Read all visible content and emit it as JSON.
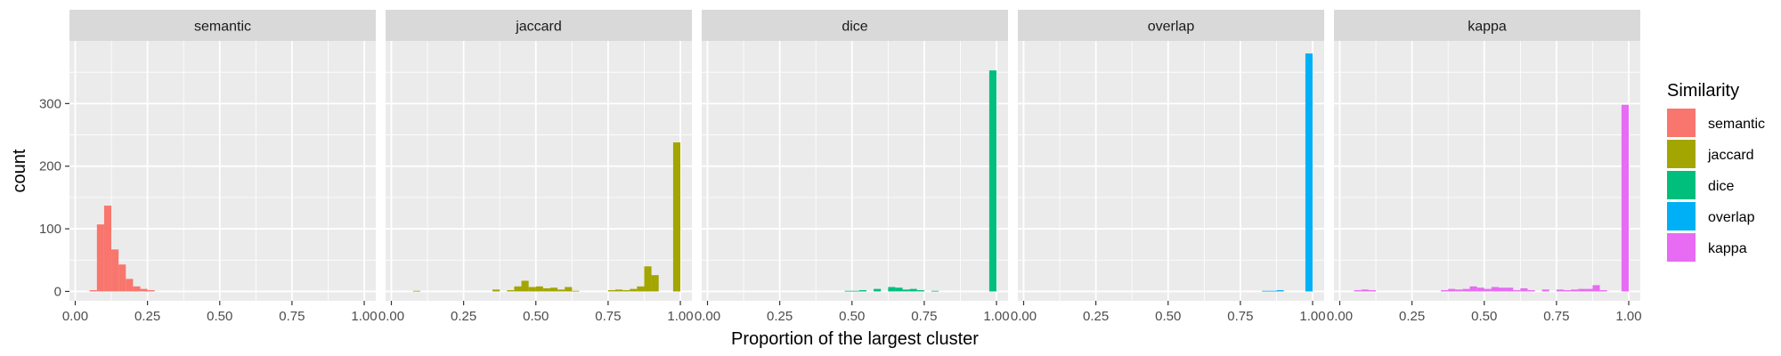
{
  "chart_data": {
    "type": "bar",
    "xlabel": "Proportion of the largest cluster",
    "ylabel": "count",
    "xlim": [
      -0.02,
      1.04
    ],
    "ylim": [
      -15,
      400
    ],
    "x_ticks": [
      0.0,
      0.25,
      0.5,
      0.75,
      1.0
    ],
    "x_tick_labels": [
      "0.00",
      "0.25",
      "0.50",
      "0.75",
      "1.00"
    ],
    "y_ticks": [
      0,
      100,
      200,
      300
    ],
    "y_tick_labels": [
      "0",
      "100",
      "200",
      "300"
    ],
    "grid": true,
    "bin_width": 0.025,
    "legend": {
      "title": "Similarity",
      "placement": "right",
      "entries": [
        {
          "name": "semantic",
          "color": "#F8766D"
        },
        {
          "name": "jaccard",
          "color": "#A3A500"
        },
        {
          "name": "dice",
          "color": "#00BF7D"
        },
        {
          "name": "overlap",
          "color": "#00B0F6"
        },
        {
          "name": "kappa",
          "color": "#E76BF3"
        }
      ]
    },
    "panels": [
      {
        "strip": "semantic",
        "color": "#F8766D",
        "bins": [
          {
            "x": 0.05,
            "count": 2
          },
          {
            "x": 0.075,
            "count": 107
          },
          {
            "x": 0.1,
            "count": 137
          },
          {
            "x": 0.125,
            "count": 67
          },
          {
            "x": 0.15,
            "count": 43
          },
          {
            "x": 0.175,
            "count": 20
          },
          {
            "x": 0.2,
            "count": 8
          },
          {
            "x": 0.225,
            "count": 4
          },
          {
            "x": 0.25,
            "count": 2
          }
        ]
      },
      {
        "strip": "jaccard",
        "color": "#A3A500",
        "bins": [
          {
            "x": 0.075,
            "count": 1
          },
          {
            "x": 0.35,
            "count": 3
          },
          {
            "x": 0.4,
            "count": 2
          },
          {
            "x": 0.425,
            "count": 8
          },
          {
            "x": 0.45,
            "count": 17
          },
          {
            "x": 0.475,
            "count": 7
          },
          {
            "x": 0.5,
            "count": 8
          },
          {
            "x": 0.525,
            "count": 5
          },
          {
            "x": 0.55,
            "count": 6
          },
          {
            "x": 0.575,
            "count": 3
          },
          {
            "x": 0.6,
            "count": 7
          },
          {
            "x": 0.625,
            "count": 1
          },
          {
            "x": 0.75,
            "count": 2
          },
          {
            "x": 0.775,
            "count": 3
          },
          {
            "x": 0.8,
            "count": 2
          },
          {
            "x": 0.825,
            "count": 4
          },
          {
            "x": 0.85,
            "count": 8
          },
          {
            "x": 0.875,
            "count": 40
          },
          {
            "x": 0.9,
            "count": 26
          },
          {
            "x": 0.975,
            "count": 238
          }
        ]
      },
      {
        "strip": "dice",
        "color": "#00BF7D",
        "bins": [
          {
            "x": 0.475,
            "count": 1
          },
          {
            "x": 0.5,
            "count": 1
          },
          {
            "x": 0.525,
            "count": 2
          },
          {
            "x": 0.575,
            "count": 4
          },
          {
            "x": 0.625,
            "count": 7
          },
          {
            "x": 0.65,
            "count": 6
          },
          {
            "x": 0.675,
            "count": 3
          },
          {
            "x": 0.7,
            "count": 4
          },
          {
            "x": 0.725,
            "count": 2
          },
          {
            "x": 0.775,
            "count": 1
          },
          {
            "x": 0.975,
            "count": 353
          }
        ]
      },
      {
        "strip": "overlap",
        "color": "#00B0F6",
        "bins": [
          {
            "x": 0.825,
            "count": 1
          },
          {
            "x": 0.85,
            "count": 1
          },
          {
            "x": 0.875,
            "count": 2
          },
          {
            "x": 0.975,
            "count": 380
          }
        ]
      },
      {
        "strip": "kappa",
        "color": "#E76BF3",
        "bins": [
          {
            "x": 0.05,
            "count": 2
          },
          {
            "x": 0.075,
            "count": 3
          },
          {
            "x": 0.1,
            "count": 2
          },
          {
            "x": 0.35,
            "count": 2
          },
          {
            "x": 0.375,
            "count": 4
          },
          {
            "x": 0.4,
            "count": 3
          },
          {
            "x": 0.425,
            "count": 4
          },
          {
            "x": 0.45,
            "count": 8
          },
          {
            "x": 0.475,
            "count": 6
          },
          {
            "x": 0.5,
            "count": 4
          },
          {
            "x": 0.525,
            "count": 7
          },
          {
            "x": 0.55,
            "count": 6
          },
          {
            "x": 0.575,
            "count": 6
          },
          {
            "x": 0.6,
            "count": 2
          },
          {
            "x": 0.625,
            "count": 5
          },
          {
            "x": 0.65,
            "count": 2
          },
          {
            "x": 0.7,
            "count": 3
          },
          {
            "x": 0.75,
            "count": 3
          },
          {
            "x": 0.775,
            "count": 2
          },
          {
            "x": 0.8,
            "count": 3
          },
          {
            "x": 0.825,
            "count": 4
          },
          {
            "x": 0.85,
            "count": 4
          },
          {
            "x": 0.875,
            "count": 10
          },
          {
            "x": 0.9,
            "count": 2
          },
          {
            "x": 0.975,
            "count": 298
          }
        ]
      }
    ]
  }
}
